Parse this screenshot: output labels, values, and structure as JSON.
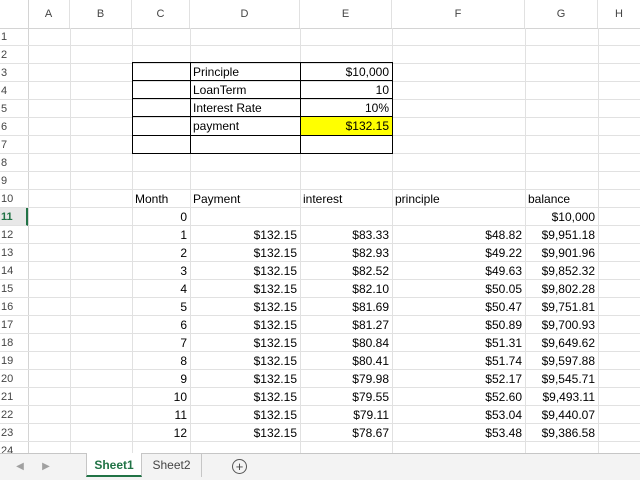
{
  "columns": [
    "A",
    "B",
    "C",
    "D",
    "E",
    "F",
    "G",
    "H"
  ],
  "rows": [
    "1",
    "2",
    "3",
    "4",
    "5",
    "6",
    "7",
    "8",
    "9",
    "10",
    "11",
    "12",
    "13",
    "14",
    "15",
    "16",
    "17",
    "18",
    "19",
    "20",
    "21",
    "22",
    "23",
    "24"
  ],
  "inputs": {
    "principle_label": "Principle",
    "principle_value": "$10,000",
    "loanterm_label": "LoanTerm",
    "loanterm_value": "10",
    "rate_label": "Interest Rate",
    "rate_value": "10%",
    "payment_label": "payment",
    "payment_value": "$132.15"
  },
  "table": {
    "headers": {
      "month": "Month",
      "payment": "Payment",
      "interest": "interest",
      "principle": "principle",
      "balance": "balance"
    },
    "row0": {
      "month": "0",
      "balance": "$10,000"
    },
    "rows": [
      {
        "month": "1",
        "payment": "$132.15",
        "interest": "$83.33",
        "principle": "$48.82",
        "balance": "$9,951.18"
      },
      {
        "month": "2",
        "payment": "$132.15",
        "interest": "$82.93",
        "principle": "$49.22",
        "balance": "$9,901.96"
      },
      {
        "month": "3",
        "payment": "$132.15",
        "interest": "$82.52",
        "principle": "$49.63",
        "balance": "$9,852.32"
      },
      {
        "month": "4",
        "payment": "$132.15",
        "interest": "$82.10",
        "principle": "$50.05",
        "balance": "$9,802.28"
      },
      {
        "month": "5",
        "payment": "$132.15",
        "interest": "$81.69",
        "principle": "$50.47",
        "balance": "$9,751.81"
      },
      {
        "month": "6",
        "payment": "$132.15",
        "interest": "$81.27",
        "principle": "$50.89",
        "balance": "$9,700.93"
      },
      {
        "month": "7",
        "payment": "$132.15",
        "interest": "$80.84",
        "principle": "$51.31",
        "balance": "$9,649.62"
      },
      {
        "month": "8",
        "payment": "$132.15",
        "interest": "$80.41",
        "principle": "$51.74",
        "balance": "$9,597.88"
      },
      {
        "month": "9",
        "payment": "$132.15",
        "interest": "$79.98",
        "principle": "$52.17",
        "balance": "$9,545.71"
      },
      {
        "month": "10",
        "payment": "$132.15",
        "interest": "$79.55",
        "principle": "$52.60",
        "balance": "$9,493.11"
      },
      {
        "month": "11",
        "payment": "$132.15",
        "interest": "$79.11",
        "principle": "$53.04",
        "balance": "$9,440.07"
      },
      {
        "month": "12",
        "payment": "$132.15",
        "interest": "$78.67",
        "principle": "$53.48",
        "balance": "$9,386.58"
      }
    ]
  },
  "sheet_tabs": [
    "Sheet1",
    "Sheet2"
  ],
  "active_tab": "Sheet1",
  "nav_icons": {
    "prev": "chevron-left-icon",
    "next": "chevron-right-icon",
    "add": "plus-circle-icon"
  },
  "colors": {
    "accent": "#217346",
    "highlight": "#ffff00"
  }
}
